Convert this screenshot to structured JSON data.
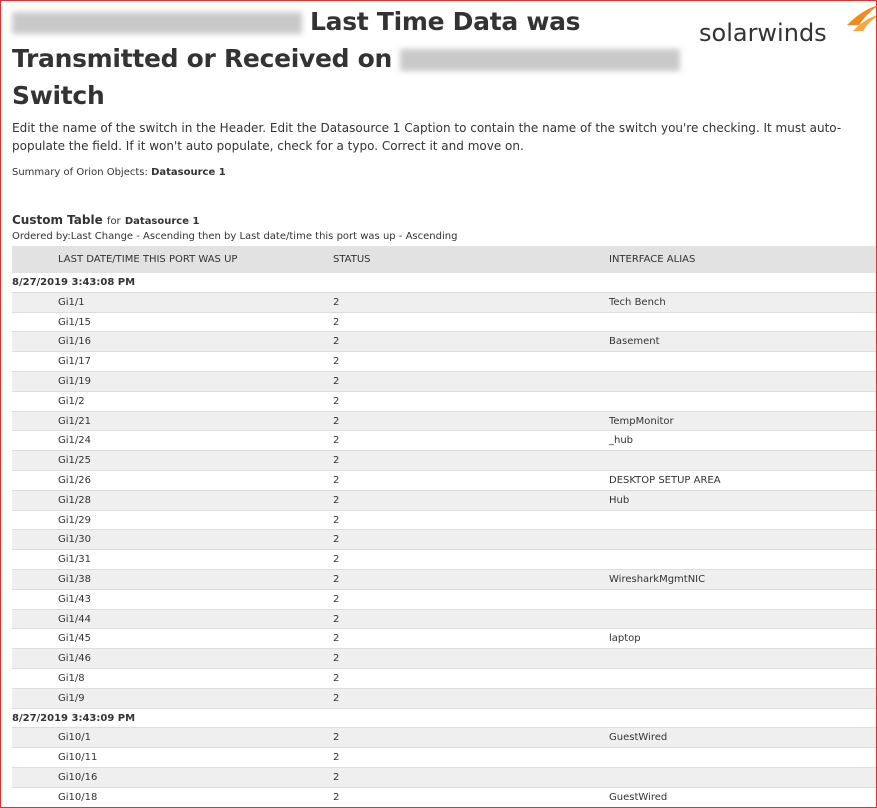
{
  "header": {
    "title_lines": [
      "Last Time Data was",
      "Transmitted or Received on",
      "Switch"
    ],
    "description": "Edit the name of the switch in the Header. Edit the Datasource 1 Caption to contain the name of the switch you're checking. It must auto-populate the field. If it won't auto populate, check for a typo. Correct it and move on.",
    "summary_label": "Summary of Orion Objects:",
    "summary_value": "Datasource 1"
  },
  "logo": "solarwinds",
  "table": {
    "title": "Custom Table",
    "title_for": "for",
    "title_source": "Datasource 1",
    "ordered": "Ordered by:Last Change - Ascending then by Last date/time this port was up - Ascending",
    "columns": [
      "LAST DATE/TIME THIS PORT WAS UP",
      "STATUS",
      "INTERFACE ALIAS"
    ],
    "groups": [
      {
        "label": "8/27/2019 3:43:08 PM",
        "rows": [
          {
            "port": "Gi1/1",
            "status": "2",
            "alias": "Tech Bench"
          },
          {
            "port": "Gi1/15",
            "status": "2"
          },
          {
            "port": "Gi1/16",
            "status": "2",
            "alias": "Basement"
          },
          {
            "port": "Gi1/17",
            "status": "2"
          },
          {
            "port": "Gi1/19",
            "status": "2"
          },
          {
            "port": "Gi1/2",
            "status": "2"
          },
          {
            "port": "Gi1/21",
            "status": "2",
            "alias": "TempMonitor"
          },
          {
            "port": "Gi1/24",
            "status": "2",
            "alias": "_hub"
          },
          {
            "port": "Gi1/25",
            "status": "2"
          },
          {
            "port": "Gi1/26",
            "status": "2",
            "alias": "DESKTOP SETUP AREA"
          },
          {
            "port": "Gi1/28",
            "status": "2",
            "alias": "Hub"
          },
          {
            "port": "Gi1/29",
            "status": "2"
          },
          {
            "port": "Gi1/30",
            "status": "2"
          },
          {
            "port": "Gi1/31",
            "status": "2"
          },
          {
            "port": "Gi1/38",
            "status": "2",
            "alias": "WiresharkMgmtNIC"
          },
          {
            "port": "Gi1/43",
            "status": "2"
          },
          {
            "port": "Gi1/44",
            "status": "2"
          },
          {
            "port": "Gi1/45",
            "status": "2",
            "alias": "laptop"
          },
          {
            "port": "Gi1/46",
            "status": "2"
          },
          {
            "port": "Gi1/8",
            "status": "2"
          },
          {
            "port": "Gi1/9",
            "status": "2"
          }
        ]
      },
      {
        "label": "8/27/2019 3:43:09 PM",
        "rows": [
          {
            "port": "Gi10/1",
            "status": "2",
            "alias": "GuestWired"
          },
          {
            "port": "Gi10/11",
            "status": "2"
          },
          {
            "port": "Gi10/16",
            "status": "2"
          },
          {
            "port": "Gi10/18",
            "status": "2",
            "alias": "GuestWired"
          }
        ]
      }
    ]
  }
}
